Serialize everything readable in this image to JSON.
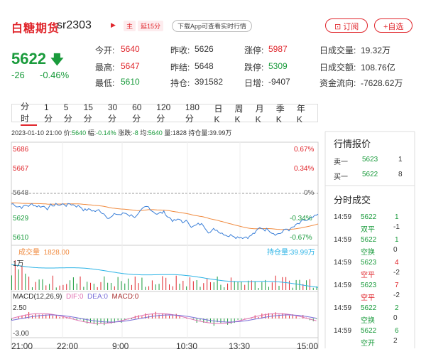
{
  "header": {
    "name": "白糖期货",
    "code": "sr2303",
    "tag_main": "主",
    "tag_delay": "延15分",
    "download": "下载App可查看实时行情",
    "btn_order": "订阅",
    "btn_watch": "+自选"
  },
  "quote": {
    "price": "5622",
    "change": "-26",
    "change_pct": "-0.46%",
    "rows": [
      {
        "l1": "今开:",
        "v1": "5640",
        "l2": "昨收:",
        "v2": "5626",
        "l3": "涨停:",
        "v3": "5987",
        "l4": "日成交量:",
        "v4": "19.32万"
      },
      {
        "l1": "最高:",
        "v1": "5647",
        "l2": "昨结:",
        "v2": "5648",
        "l3": "跌停:",
        "v3": "5309",
        "l4": "日成交额:",
        "v4": "108.76亿"
      },
      {
        "l1": "最低:",
        "v1": "5610",
        "l2": "持仓:",
        "v2": "391582",
        "l3": "日增:",
        "v3": "-9407",
        "l4": "资金流向:",
        "v4": "-7628.62万"
      }
    ]
  },
  "tabs": [
    "分时",
    "1分",
    "5分",
    "15分",
    "30分",
    "60分",
    "120分",
    "180分",
    "日K",
    "周K",
    "月K",
    "季K",
    "年K"
  ],
  "infobar": {
    "time": "2023-01-10 21:00",
    "price_l": "价:",
    "price": "5640",
    "amp_l": "幅:",
    "amp": "-0.14%",
    "chg_l": "涨跌:",
    "chg": "-8",
    "avg_l": "均:",
    "avg": "5640",
    "vol_l": "量:",
    "vol": "1828",
    "oi_l": "持仓量:",
    "oi": "39.99万"
  },
  "axis": {
    "p1": "5686",
    "p2": "5667",
    "p3": "5648",
    "p4": "5629",
    "p5": "5610",
    "r1": "0.67%",
    "r2": "0.34%",
    "r3": "0%",
    "r4": "-0.34%",
    "r5": "-0.67%",
    "vol_label": "成交量",
    "vol_value": "1828.00",
    "oi_label": "持仓量:",
    "oi_value": "39.99万",
    "vol_axis": "1万"
  },
  "macd": {
    "label": "MACD(12,26,9)",
    "dif": "DIF:0",
    "dea": "DEA:0",
    "macd": "MACD:0",
    "top": "2.50",
    "bottom": "-3.00"
  },
  "xaxis": [
    "21:00",
    "22:00",
    "9:00",
    "10:30",
    "13:30",
    "15:00"
  ],
  "orderbook": {
    "title": "行情报价",
    "sell_l": "卖一",
    "sell_p": "5623",
    "sell_v": "1",
    "buy_l": "买一",
    "buy_p": "5622",
    "buy_v": "8"
  },
  "trades_title": "分时成交",
  "trades": [
    {
      "t": "14:59",
      "p": "5622",
      "v": "1",
      "type": "双平",
      "oi": "-1",
      "pc": "green",
      "vc": "green",
      "tc": "green"
    },
    {
      "t": "14:59",
      "p": "5622",
      "v": "1",
      "type": "空换",
      "oi": "0",
      "pc": "green",
      "vc": "green",
      "tc": "green"
    },
    {
      "t": "14:59",
      "p": "5623",
      "v": "4",
      "type": "空平",
      "oi": "-2",
      "pc": "green",
      "vc": "red",
      "tc": "red"
    },
    {
      "t": "14:59",
      "p": "5623",
      "v": "7",
      "type": "空平",
      "oi": "-2",
      "pc": "green",
      "vc": "red",
      "tc": "red"
    },
    {
      "t": "14:59",
      "p": "5622",
      "v": "2",
      "type": "空换",
      "oi": "0",
      "pc": "green",
      "vc": "green",
      "tc": "green"
    },
    {
      "t": "14:59",
      "p": "5622",
      "v": "6",
      "type": "空开",
      "oi": "2",
      "pc": "green",
      "vc": "green",
      "tc": "green"
    }
  ],
  "colors": {
    "up": "#e0262c",
    "down": "#1a9b3c",
    "price_line": "#3a7fd8",
    "avg_line": "#f08a3e"
  }
}
